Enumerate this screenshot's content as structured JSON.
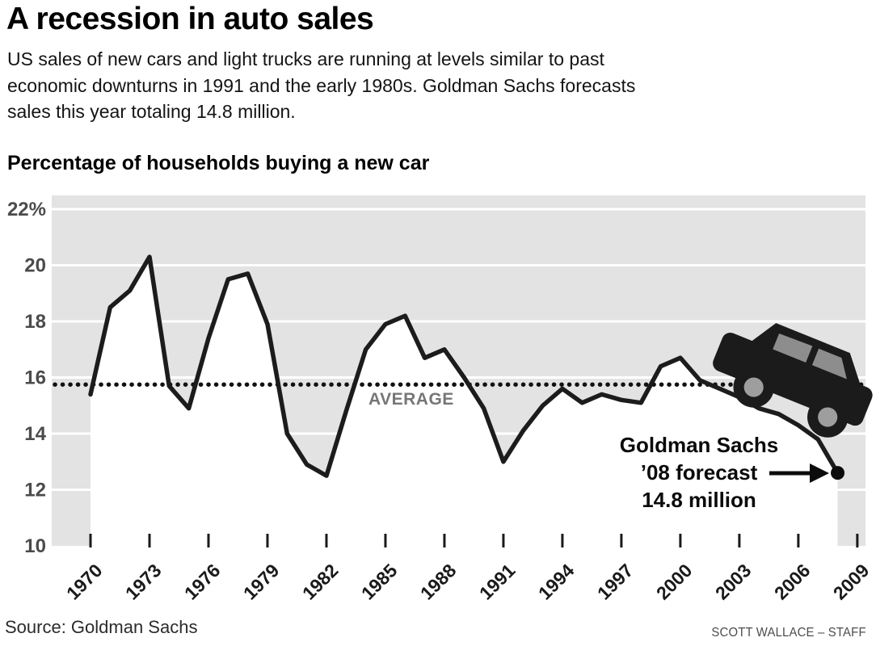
{
  "title": "A recession in auto sales",
  "subtitle_lines": [
    "US sales of new cars and light trucks are running at levels similar to past",
    "economic downturns in 1991 and the early 1980s. Goldman Sachs forecasts",
    "sales this year totaling 14.8 million."
  ],
  "chart_heading": "Percentage of households buying a new car",
  "average_label": "AVERAGE",
  "annotation": {
    "line1": "Goldman Sachs",
    "line2": "’08 forecast",
    "line3": "14.8 million"
  },
  "source": "Source: Goldman Sachs",
  "credit": "SCOTT WALLACE – STAFF",
  "colors": {
    "plot_bg": "#e3e3e3",
    "grid": "#ffffff",
    "line": "#1c1c1c",
    "dotted": "#111111",
    "tick": "#1a1a1a",
    "axis_label": "#4b4b4b",
    "x_label": "#1a1a1a",
    "car_body": "#1b1b1b",
    "car_window": "#8d8d8d",
    "wheel_hub": "#9e9e9e",
    "dot": "#0c0c0c"
  },
  "chart_data": {
    "type": "line",
    "title": "Percentage of households buying a new car",
    "series_name": "Percentage of households buying a new car",
    "x": [
      1970,
      1971,
      1972,
      1973,
      1974,
      1975,
      1976,
      1977,
      1978,
      1979,
      1980,
      1981,
      1982,
      1983,
      1984,
      1985,
      1986,
      1987,
      1988,
      1989,
      1990,
      1991,
      1992,
      1993,
      1994,
      1995,
      1996,
      1997,
      1998,
      1999,
      2000,
      2001,
      2002,
      2003,
      2004,
      2005,
      2006,
      2007,
      2008
    ],
    "values": [
      15.4,
      18.5,
      19.1,
      20.3,
      15.7,
      14.9,
      17.4,
      19.5,
      19.7,
      17.9,
      14.0,
      12.9,
      12.5,
      14.8,
      17.0,
      17.9,
      18.2,
      16.7,
      17.0,
      16.0,
      14.9,
      13.0,
      14.1,
      15.0,
      15.6,
      15.1,
      15.4,
      15.2,
      15.1,
      16.4,
      16.7,
      15.9,
      15.6,
      15.3,
      14.9,
      14.7,
      14.3,
      13.8,
      12.6
    ],
    "average_line": 15.75,
    "ylim": [
      10,
      22
    ],
    "yticks": [
      10,
      12,
      14,
      16,
      18,
      20,
      22
    ],
    "ytick_labels": [
      "10",
      "12",
      "14",
      "16",
      "18",
      "20",
      "22%"
    ],
    "xticks": [
      1970,
      1973,
      1976,
      1979,
      1982,
      1985,
      1988,
      1991,
      1994,
      1997,
      2000,
      2003,
      2006,
      2009
    ],
    "grid": "horizontal-white-on-gray",
    "legend": "none",
    "forecast_point": {
      "year": 2008,
      "value": 12.6,
      "label": "Goldman Sachs ’08 forecast 14.8 million"
    }
  }
}
